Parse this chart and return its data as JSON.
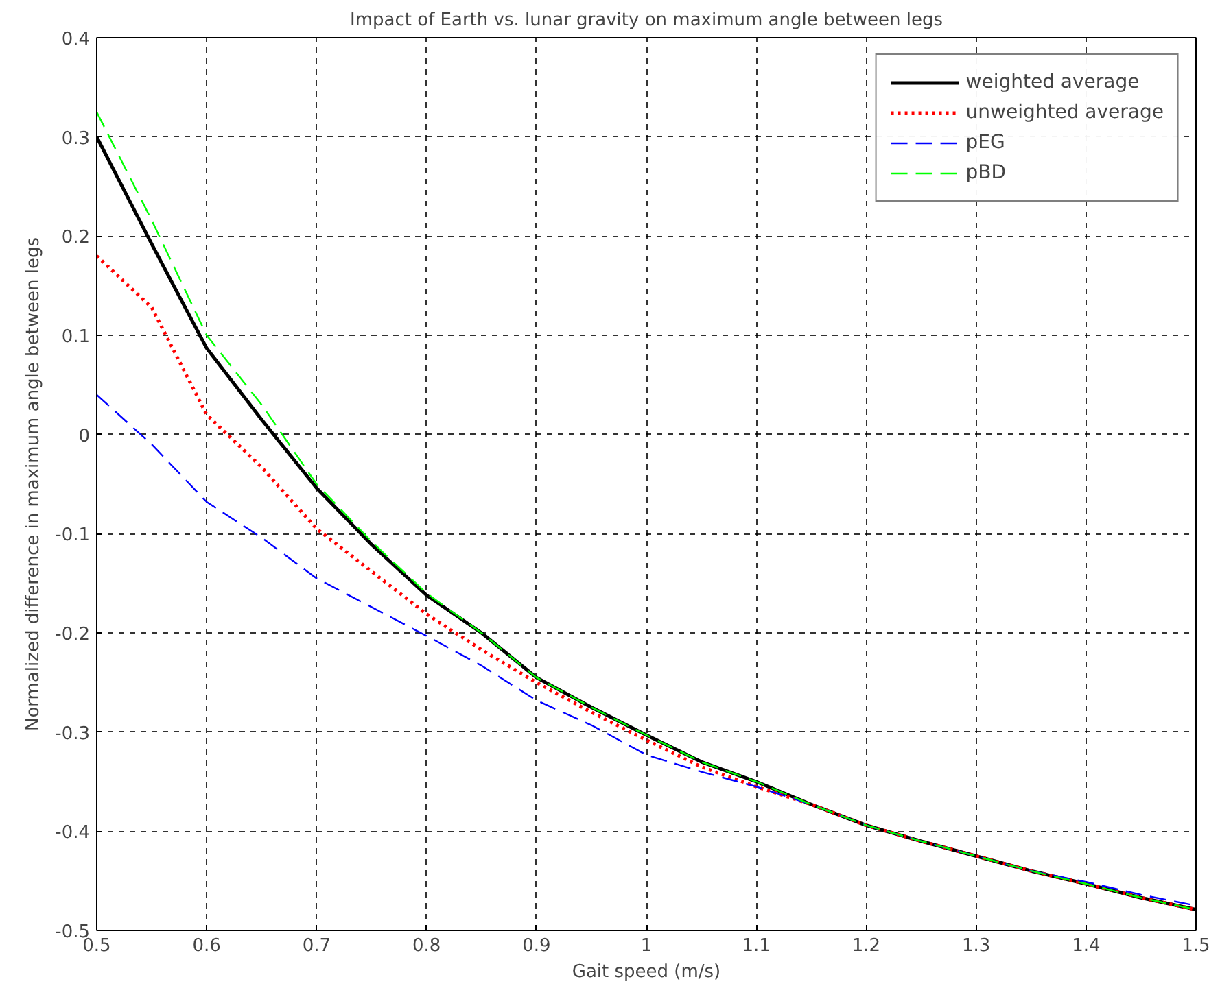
{
  "chart_data": {
    "type": "line",
    "title": "Impact of Earth vs. lunar gravity on maximum angle between legs",
    "xlabel": "Gait speed (m/s)",
    "ylabel": "Normalized difference in maximum angle between legs",
    "x": [
      0.5,
      0.55,
      0.6,
      0.65,
      0.7,
      0.75,
      0.8,
      0.85,
      0.9,
      0.95,
      1.0,
      1.05,
      1.1,
      1.15,
      1.2,
      1.25,
      1.3,
      1.35,
      1.4,
      1.45,
      1.5
    ],
    "series": [
      {
        "name": "weighted average",
        "color": "#000000",
        "line_style": "solid",
        "values": [
          0.3,
          0.192,
          0.087,
          0.015,
          -0.054,
          -0.111,
          -0.162,
          -0.2,
          -0.245,
          -0.275,
          -0.303,
          -0.33,
          -0.35,
          -0.373,
          -0.394,
          -0.41,
          -0.425,
          -0.44,
          -0.453,
          -0.467,
          -0.479
        ]
      },
      {
        "name": "unweighted average",
        "color": "#ff0000",
        "line_style": "dotted",
        "values": [
          0.18,
          0.128,
          0.02,
          -0.033,
          -0.095,
          -0.138,
          -0.181,
          -0.217,
          -0.25,
          -0.28,
          -0.308,
          -0.335,
          -0.355,
          -0.373,
          -0.394,
          -0.41,
          -0.425,
          -0.44,
          -0.453,
          -0.467,
          -0.479
        ]
      },
      {
        "name": "pEG",
        "color": "#0000ff",
        "line_style": "dashed",
        "values": [
          0.04,
          -0.01,
          -0.068,
          -0.104,
          -0.145,
          -0.174,
          -0.203,
          -0.233,
          -0.268,
          -0.293,
          -0.323,
          -0.34,
          -0.355,
          -0.373,
          -0.394,
          -0.41,
          -0.425,
          -0.44,
          -0.451,
          -0.464,
          -0.475
        ]
      },
      {
        "name": "pBD",
        "color": "#00ff00",
        "line_style": "dashed",
        "values": [
          0.325,
          0.216,
          0.1,
          0.03,
          -0.05,
          -0.108,
          -0.16,
          -0.2,
          -0.245,
          -0.275,
          -0.303,
          -0.33,
          -0.35,
          -0.373,
          -0.394,
          -0.41,
          -0.425,
          -0.44,
          -0.453,
          -0.467,
          -0.479
        ]
      }
    ],
    "xlim": [
      0.5,
      1.5
    ],
    "ylim": [
      -0.5,
      0.4
    ],
    "xticks": [
      0.5,
      0.6,
      0.7,
      0.8,
      0.9,
      1,
      1.1,
      1.2,
      1.3,
      1.4,
      1.5
    ],
    "yticks": [
      -0.5,
      -0.4,
      -0.3,
      -0.2,
      -0.1,
      0,
      0.1,
      0.2,
      0.3,
      0.4
    ],
    "grid": true,
    "legend": "top right"
  }
}
